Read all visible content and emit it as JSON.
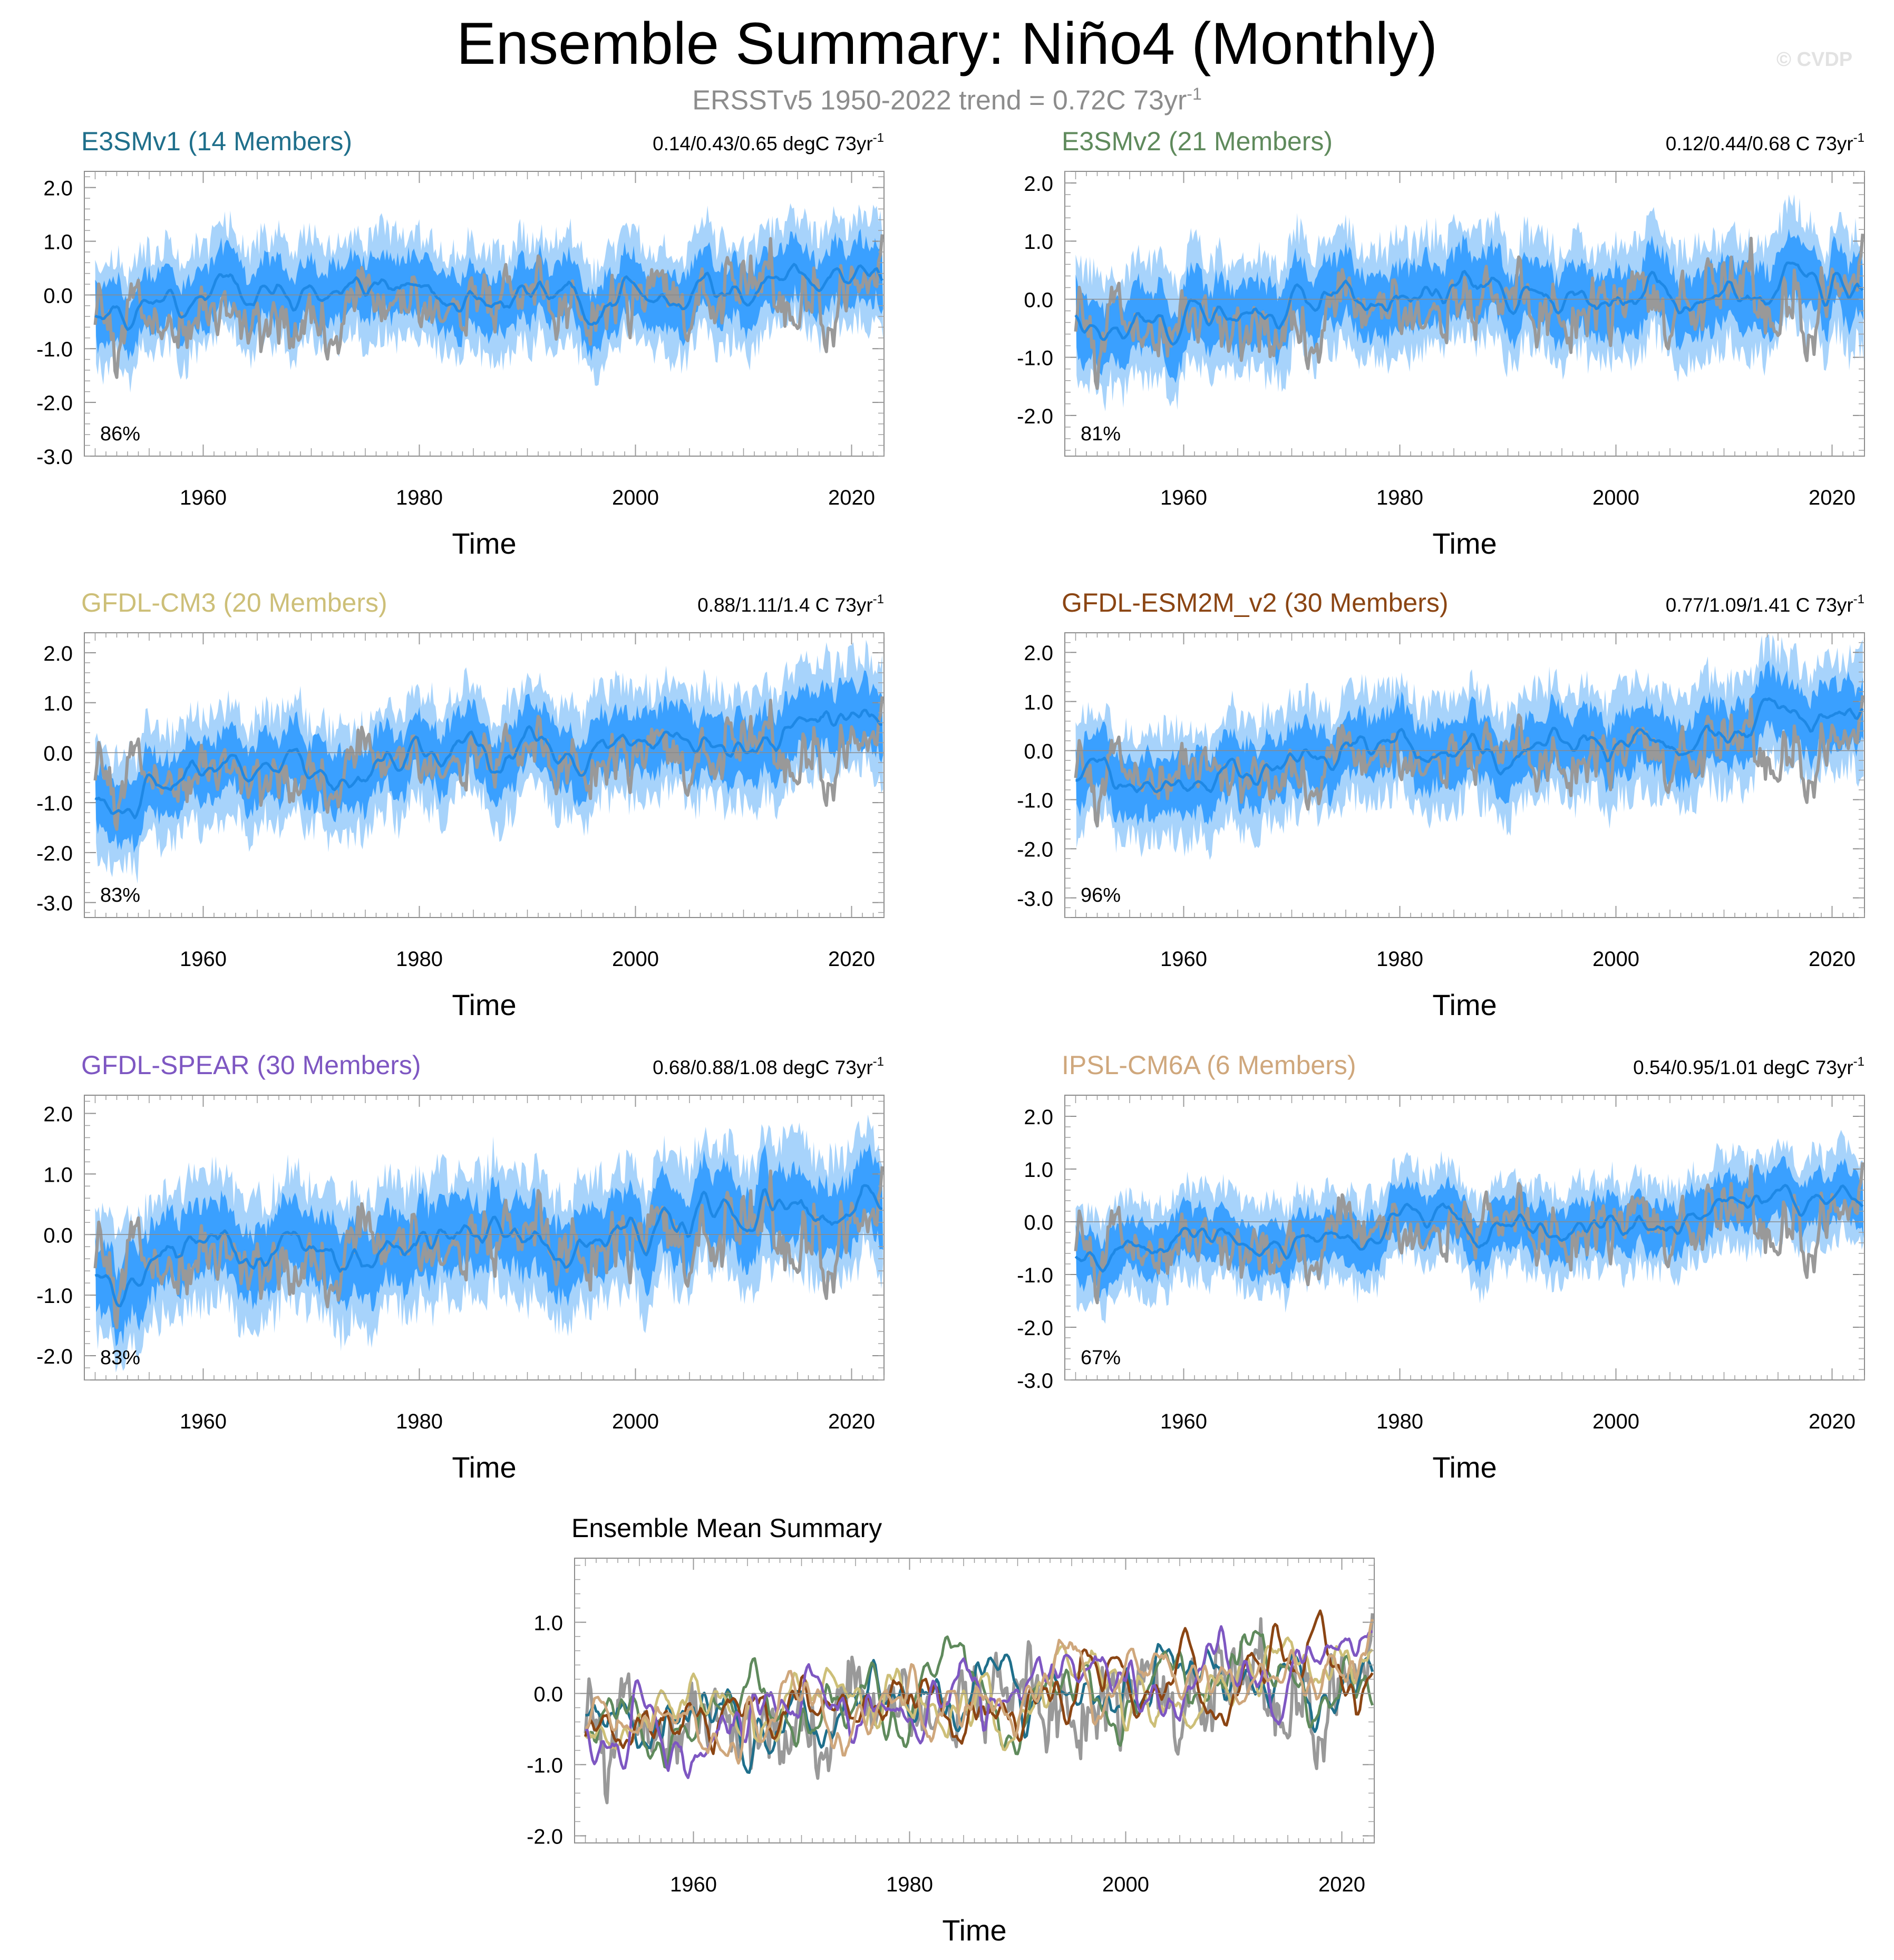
{
  "title": "Ensemble Summary: Niño4 (Monthly)",
  "subtitle": {
    "text": "ERSSTv5 1950-2022 trend = 0.72C 73yr",
    "sup": "-1"
  },
  "watermark": "© CVDP",
  "colors": {
    "obs": "#999999",
    "spread_outer": "#a7d3fb",
    "spread_inner": "#3aa0ff",
    "ens_mean": "#1e88e5",
    "zero_line": "#8a8a8a"
  },
  "chart_data": [
    {
      "id": "e3smv1",
      "type": "line",
      "title": "E3SMv1 (14 Members)",
      "title_color": "#1f6f8b",
      "trend_text": "0.14/0.43/0.65 degC 73yr",
      "trend_sup": "-1",
      "percent": "86%",
      "xlabel": "Time",
      "xlim": [
        1949,
        2023
      ],
      "ylim": [
        -3.0,
        2.3
      ],
      "yticks": [
        2.0,
        1.0,
        0.0,
        -1.0,
        -2.0,
        -3.0
      ],
      "ytick_labels": [
        "2.0",
        "1.0",
        "0.0",
        "-1.0",
        "-2.0",
        "-3.0"
      ],
      "xticks": [
        1960,
        1980,
        2000,
        2020
      ],
      "trend_mean": 0.43,
      "amp": 0.75,
      "seed": 11
    },
    {
      "id": "e3smv2",
      "type": "line",
      "title": "E3SMv2 (21 Members)",
      "title_color": "#5f8a5c",
      "trend_text": "0.12/0.44/0.68 C 73yr",
      "trend_sup": "-1",
      "percent": "81%",
      "xlabel": "Time",
      "xlim": [
        1949,
        2023
      ],
      "ylim": [
        -2.7,
        2.2
      ],
      "yticks": [
        2.0,
        1.0,
        0.0,
        -1.0,
        -2.0
      ],
      "ytick_labels": [
        "2.0",
        "1.0",
        "0.0",
        "-1.0",
        "-2.0"
      ],
      "xticks": [
        1960,
        1980,
        2000,
        2020
      ],
      "trend_mean": 0.44,
      "amp": 0.75,
      "seed": 23
    },
    {
      "id": "gfdl-cm3",
      "type": "line",
      "title": "GFDL-CM3 (20 Members)",
      "title_color": "#cdbf78",
      "trend_text": "0.88/1.11/1.4 C 73yr",
      "trend_sup": "-1",
      "percent": "83%",
      "xlabel": "Time",
      "xlim": [
        1949,
        2023
      ],
      "ylim": [
        -3.3,
        2.4
      ],
      "yticks": [
        2.0,
        1.0,
        0.0,
        -1.0,
        -2.0,
        -3.0
      ],
      "ytick_labels": [
        "2.0",
        "1.0",
        "0.0",
        "-1.0",
        "-2.0",
        "-3.0"
      ],
      "xticks": [
        1960,
        1980,
        2000,
        2020
      ],
      "trend_mean": 1.11,
      "amp": 0.85,
      "seed": 37
    },
    {
      "id": "gfdl-esm2m",
      "type": "line",
      "title": "GFDL-ESM2M_v2 (30 Members)",
      "title_color": "#8b4513",
      "trend_text": "0.77/1.09/1.41 C 73yr",
      "trend_sup": "-1",
      "percent": "96%",
      "xlabel": "Time",
      "xlim": [
        1949,
        2023
      ],
      "ylim": [
        -3.4,
        2.4
      ],
      "yticks": [
        2.0,
        1.0,
        0.0,
        -1.0,
        -2.0,
        -3.0
      ],
      "ytick_labels": [
        "2.0",
        "1.0",
        "0.0",
        "-1.0",
        "-2.0",
        "-3.0"
      ],
      "xticks": [
        1960,
        1980,
        2000,
        2020
      ],
      "trend_mean": 1.09,
      "amp": 0.85,
      "seed": 41
    },
    {
      "id": "gfdl-spear",
      "type": "line",
      "title": "GFDL-SPEAR (30 Members)",
      "title_color": "#7e57c2",
      "trend_text": "0.68/0.88/1.08 degC 73yr",
      "trend_sup": "-1",
      "percent": "83%",
      "xlabel": "Time",
      "xlim": [
        1949,
        2023
      ],
      "ylim": [
        -2.4,
        2.3
      ],
      "yticks": [
        2.0,
        1.0,
        0.0,
        -1.0,
        -2.0
      ],
      "ytick_labels": [
        "2.0",
        "1.0",
        "0.0",
        "-1.0",
        "-2.0"
      ],
      "xticks": [
        1960,
        1980,
        2000,
        2020
      ],
      "trend_mean": 0.88,
      "amp": 0.8,
      "seed": 53
    },
    {
      "id": "ipsl-cm6a",
      "type": "line",
      "title": "IPSL-CM6A (6 Members)",
      "title_color": "#cfa77c",
      "trend_text": "0.54/0.95/1.01 degC 73yr",
      "trend_sup": "-1",
      "percent": "67%",
      "xlabel": "Time",
      "xlim": [
        1949,
        2023
      ],
      "ylim": [
        -3.0,
        2.4
      ],
      "yticks": [
        2.0,
        1.0,
        0.0,
        -1.0,
        -2.0,
        -3.0
      ],
      "ytick_labels": [
        "2.0",
        "1.0",
        "0.0",
        "-1.0",
        "-2.0",
        "-3.0"
      ],
      "xticks": [
        1960,
        1980,
        2000,
        2020
      ],
      "trend_mean": 0.95,
      "amp": 0.65,
      "seed": 67
    },
    {
      "id": "ensemble-mean",
      "type": "line",
      "title": "Ensemble Mean Summary",
      "title_color": "#000000",
      "xlabel": "Time",
      "xlim": [
        1949,
        2023
      ],
      "ylim": [
        -2.1,
        1.9
      ],
      "yticks": [
        1.0,
        0.0,
        -1.0,
        -2.0
      ],
      "ytick_labels": [
        "1.0",
        "0.0",
        "-1.0",
        "-2.0"
      ],
      "xticks": [
        1960,
        1980,
        2000,
        2020
      ],
      "series": [
        {
          "name": "ERSSTv5",
          "color": "#999999",
          "trend": 0.72
        },
        {
          "name": "E3SMv1",
          "color": "#1f6f8b",
          "trend": 0.43
        },
        {
          "name": "E3SMv2",
          "color": "#5f8a5c",
          "trend": 0.44
        },
        {
          "name": "GFDL-CM3",
          "color": "#cdbf78",
          "trend": 1.11
        },
        {
          "name": "GFDL-ESM2M_v2",
          "color": "#8b4513",
          "trend": 1.09
        },
        {
          "name": "GFDL-SPEAR",
          "color": "#7e57c2",
          "trend": 0.88
        },
        {
          "name": "IPSL-CM6A",
          "color": "#cfa77c",
          "trend": 0.95
        }
      ]
    }
  ]
}
